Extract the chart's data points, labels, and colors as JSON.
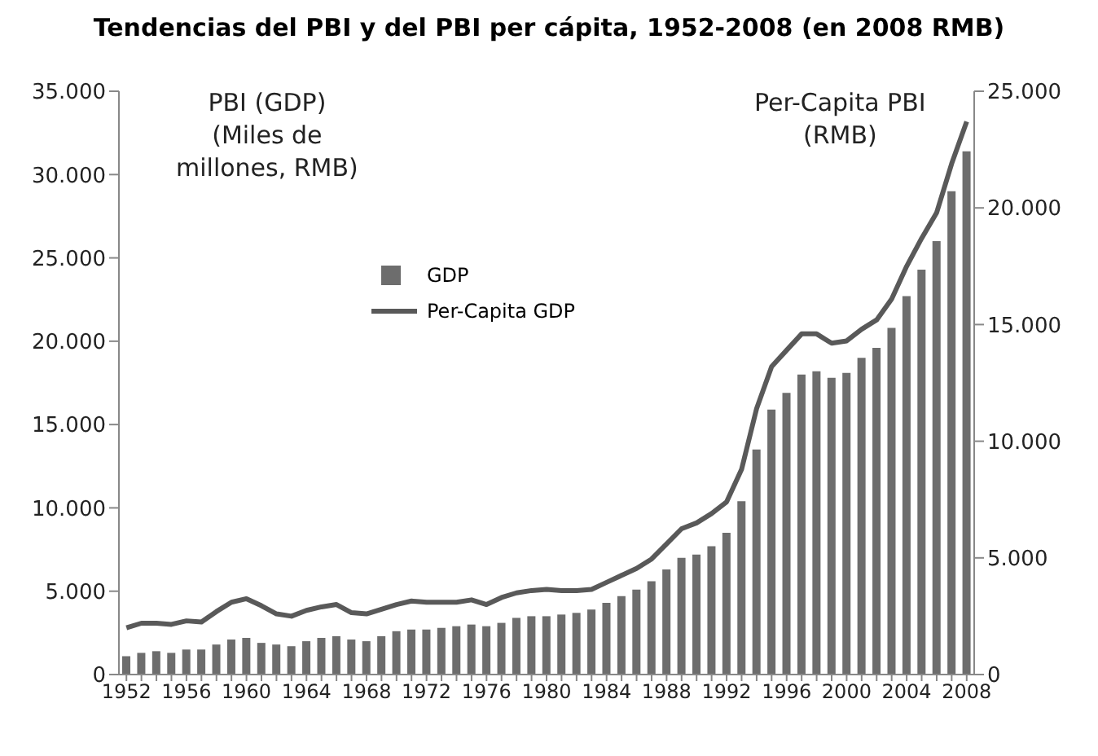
{
  "chart_data": {
    "type": "bar",
    "title": "Tendencias del PBI y del PBI per cápita, 1952-2008 (en 2008 RMB)",
    "categories": [
      "1952",
      null,
      null,
      null,
      "1956",
      null,
      null,
      null,
      "1960",
      null,
      null,
      null,
      "1964",
      null,
      null,
      null,
      "1968",
      null,
      null,
      null,
      "1972",
      null,
      null,
      null,
      "1976",
      null,
      null,
      null,
      "1980",
      null,
      null,
      null,
      "1984",
      null,
      null,
      null,
      "1988",
      null,
      null,
      null,
      "1992",
      null,
      null,
      null,
      "1996",
      null,
      null,
      null,
      "2000",
      null,
      null,
      null,
      "2004",
      null,
      null,
      null,
      "2008"
    ],
    "series": [
      {
        "name": "GDP",
        "color": "#6d6d6d",
        "values": [
          1100,
          1300,
          1400,
          1300,
          1500,
          1500,
          1800,
          2100,
          2200,
          1900,
          1800,
          1700,
          2000,
          2200,
          2300,
          2100,
          2000,
          2300,
          2600,
          2700,
          2700,
          2800,
          2900,
          3000,
          2900,
          3100,
          3400,
          3500,
          3500,
          3600,
          3700,
          3900,
          4300,
          4700,
          5100,
          5600,
          6300,
          7000,
          7200,
          7700,
          8500,
          10400,
          13500,
          15900,
          16900,
          18000,
          18200,
          17800,
          18100,
          19000,
          19600,
          20800,
          22700,
          24300,
          26000,
          29000,
          31400
        ]
      },
      {
        "name": "Per-Capita GDP",
        "type": "line",
        "axis": "y2",
        "color": "#595959",
        "values": [
          2000,
          2200,
          2200,
          2150,
          2300,
          2250,
          2700,
          3100,
          3250,
          2950,
          2600,
          2500,
          2750,
          2900,
          3000,
          2650,
          2600,
          2800,
          3000,
          3150,
          3100,
          3100,
          3100,
          3200,
          3000,
          3300,
          3500,
          3600,
          3650,
          3600,
          3600,
          3650,
          3950,
          4250,
          4550,
          4950,
          5600,
          6250,
          6500,
          6900,
          7400,
          8800,
          11400,
          13200,
          13900,
          14600,
          14600,
          14200,
          14300,
          14800,
          15200,
          16100,
          17500,
          18700,
          19800,
          21900,
          23700
        ]
      }
    ],
    "ylim": [
      0,
      35000
    ],
    "yticks": [
      0,
      {
        "value": 5000,
        "label": "5.000"
      },
      {
        "value": 10000,
        "label": "10.000"
      },
      {
        "value": 15000,
        "label": "15.000"
      },
      {
        "value": 20000,
        "label": "20.000"
      },
      {
        "value": 25000,
        "label": "25.000"
      },
      {
        "value": 30000,
        "label": "30.000"
      },
      {
        "value": 35000,
        "label": "35.000"
      }
    ],
    "y2lim": [
      0,
      25000
    ],
    "y2ticks": [
      0,
      {
        "value": 5000,
        "label": "5.000"
      },
      {
        "value": 10000,
        "label": "10.000"
      },
      {
        "value": 15000,
        "label": "15.000"
      },
      {
        "value": 20000,
        "label": "20.000"
      },
      {
        "value": 25000,
        "label": "25.000"
      }
    ],
    "annotations": [
      "PBI (GDP)\n(Miles de\nmillones, RMB)",
      "Per-Capita PBI\n(RMB)"
    ],
    "legend": "top left",
    "grid": false,
    "marker": "none",
    "line_style": "solid"
  }
}
